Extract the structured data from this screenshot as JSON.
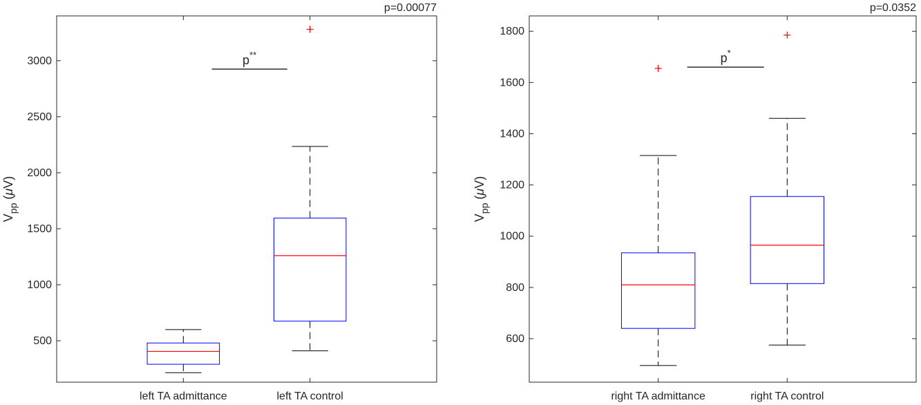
{
  "chart_data": [
    {
      "type": "box",
      "ylabel": {
        "main": "V",
        "sub": "pp",
        "unit_open": " (",
        "mu": "μ",
        "unit_close": "V)"
      },
      "categories": [
        "left TA admittance",
        "left TA control"
      ],
      "ylim": [
        130,
        3400
      ],
      "yticks": [
        500,
        1000,
        1500,
        2000,
        2500,
        3000
      ],
      "boxes": [
        {
          "whisker_low": 215,
          "q1": 290,
          "median": 405,
          "q3": 480,
          "whisker_high": 600,
          "outliers": []
        },
        {
          "whisker_low": 410,
          "q1": 675,
          "median": 1260,
          "q3": 1595,
          "whisker_high": 2235,
          "outliers": [
            3280
          ]
        }
      ],
      "pvalue_text": "p=0.00077",
      "significance": {
        "label": "p",
        "stars": "**",
        "y": 2925
      },
      "grid": false,
      "colors": {
        "box": "#0000ff",
        "median": "#ff0000",
        "whisker": "#000000",
        "outlier": "#ff0000",
        "axis": "#262626"
      }
    },
    {
      "type": "box",
      "ylabel": {
        "main": "V",
        "sub": "pp",
        "unit_open": " (",
        "mu": "μ",
        "unit_close": "V)"
      },
      "categories": [
        "right TA admittance",
        "right TA control"
      ],
      "ylim": [
        430,
        1860
      ],
      "yticks": [
        600,
        800,
        1000,
        1200,
        1400,
        1600,
        1800
      ],
      "boxes": [
        {
          "whisker_low": 495,
          "q1": 640,
          "median": 810,
          "q3": 935,
          "whisker_high": 1315,
          "outliers": [
            1655
          ]
        },
        {
          "whisker_low": 575,
          "q1": 815,
          "median": 965,
          "q3": 1155,
          "whisker_high": 1460,
          "outliers": [
            1785
          ]
        }
      ],
      "pvalue_text": "p=0.0352",
      "significance": {
        "label": "p",
        "stars": "*",
        "y": 1660
      },
      "grid": false,
      "colors": {
        "box": "#0000ff",
        "median": "#ff0000",
        "whisker": "#000000",
        "outlier": "#ff0000",
        "axis": "#262626"
      }
    }
  ]
}
